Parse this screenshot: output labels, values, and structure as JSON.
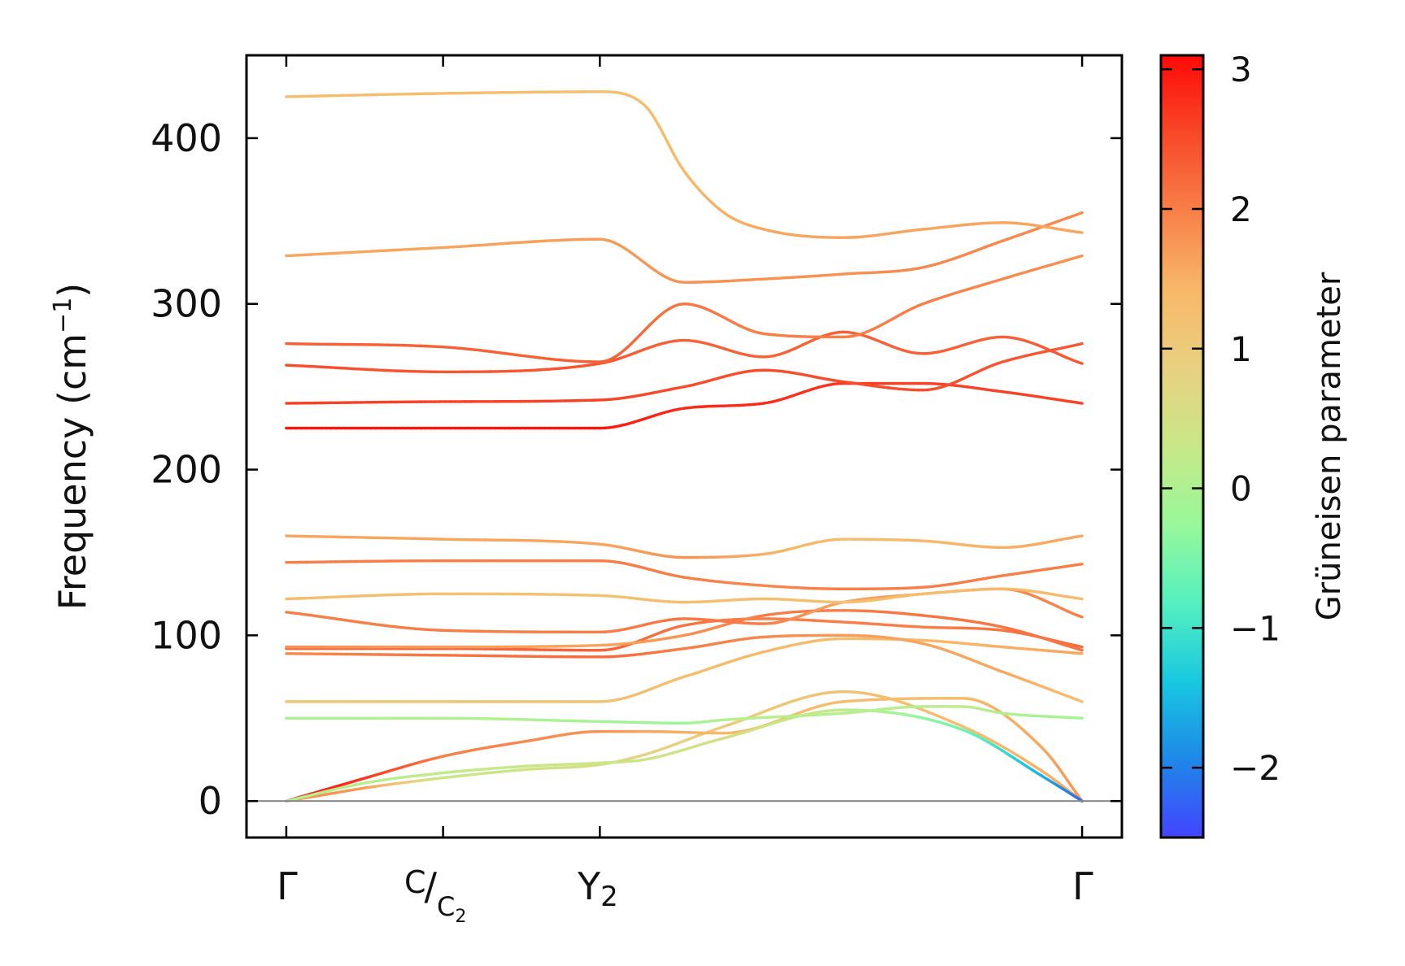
{
  "chart_data": {
    "type": "line",
    "title": "",
    "xlabel": "",
    "ylabel_text": "Frequency (cm",
    "ylabel_sup": "−1",
    "ylabel_close": ")",
    "ylim": [
      -22,
      450
    ],
    "yticks": [
      {
        "value": 0,
        "label": "0"
      },
      {
        "value": 100,
        "label": "100"
      },
      {
        "value": 200,
        "label": "200"
      },
      {
        "value": 300,
        "label": "300"
      },
      {
        "value": 400,
        "label": "400"
      }
    ],
    "xlim": [
      -0.05,
      1.05
    ],
    "x_points": [
      {
        "pos": 0.0,
        "label": "Γ"
      },
      {
        "pos": 0.197,
        "label_main": "C",
        "label_sub": "C",
        "label_subsub": "2"
      },
      {
        "pos": 0.394,
        "label_main": "Y",
        "label_sub": "2"
      },
      {
        "pos": 1.0,
        "label": "Γ"
      }
    ],
    "colorbar": {
      "label": "Grüneisen parameter",
      "range": [
        -2.5,
        3.1
      ],
      "ticks": [
        -2,
        -1,
        0,
        1,
        2,
        3
      ],
      "tick_labels": [
        "−2",
        "−1",
        "0",
        "1",
        "2",
        "3"
      ],
      "colors": [
        "#4444ff",
        "#1e88e8",
        "#18c8e0",
        "#55f0c0",
        "#98f89a",
        "#c8e888",
        "#e8d080",
        "#f8b868",
        "#f88048",
        "#f84828",
        "#ff0a08"
      ]
    },
    "series": [
      {
        "name": "band-1",
        "x": [
          0,
          0.05,
          0.1,
          0.197,
          0.3,
          0.394,
          0.45,
          0.55,
          0.7,
          0.85,
          0.95,
          1.0
        ],
        "y": [
          0,
          4,
          8,
          14,
          19,
          22,
          28,
          45,
          66,
          45,
          18,
          0
        ],
        "g": [
          1.8,
          1.8,
          1.7,
          0.3,
          0.4,
          0.6,
          0.8,
          1.0,
          1.2,
          1.3,
          1.5,
          1.6
        ]
      },
      {
        "name": "band-2",
        "x": [
          0,
          0.05,
          0.1,
          0.197,
          0.3,
          0.394,
          0.45,
          0.55,
          0.7,
          0.85,
          0.95,
          1.0
        ],
        "y": [
          0,
          7,
          14,
          27,
          36,
          42,
          42,
          41,
          60,
          62,
          32,
          0
        ],
        "g": [
          3.0,
          2.9,
          2.7,
          2.0,
          1.9,
          1.8,
          1.6,
          1.4,
          1.3,
          1.4,
          1.6,
          1.8
        ]
      },
      {
        "name": "band-3",
        "x": [
          0,
          0.1,
          0.197,
          0.3,
          0.394,
          0.45,
          0.55,
          0.7,
          0.85,
          0.95,
          1.0
        ],
        "y": [
          0,
          11,
          17,
          21,
          23,
          25,
          38,
          55,
          43,
          15,
          0
        ],
        "g": [
          0.0,
          0.1,
          0.2,
          0.3,
          0.3,
          0.4,
          0.5,
          0.2,
          -0.6,
          -1.6,
          -2.2
        ]
      },
      {
        "name": "band-4",
        "x": [
          0,
          0.197,
          0.394,
          0.5,
          0.55,
          0.7,
          0.8,
          0.85,
          0.9,
          1.0
        ],
        "y": [
          50,
          50,
          48,
          47,
          49,
          53,
          57,
          57,
          53,
          50
        ],
        "g": [
          0.0,
          0.1,
          -0.1,
          -0.2,
          0.1,
          0.1,
          0.1,
          0.2,
          0.0,
          -0.1
        ]
      },
      {
        "name": "band-5",
        "x": [
          0,
          0.197,
          0.394,
          0.5,
          0.6,
          0.7,
          0.8,
          0.9,
          1.0
        ],
        "y": [
          60,
          60,
          60,
          75,
          90,
          98,
          97,
          93,
          89
        ],
        "g": [
          1.1,
          1.1,
          1.2,
          1.3,
          1.4,
          1.3,
          1.4,
          1.5,
          1.6
        ]
      },
      {
        "name": "band-6",
        "x": [
          0,
          0.197,
          0.394,
          0.5,
          0.6,
          0.7,
          0.8,
          0.9,
          1.0
        ],
        "y": [
          89,
          88,
          87,
          92,
          99,
          100,
          95,
          78,
          60
        ],
        "g": [
          1.9,
          2.1,
          2.2,
          2.0,
          1.9,
          1.7,
          1.6,
          1.6,
          1.3
        ]
      },
      {
        "name": "band-7",
        "x": [
          0,
          0.197,
          0.394,
          0.5,
          0.6,
          0.7,
          0.8,
          0.9,
          1.0
        ],
        "y": [
          92,
          92,
          91,
          106,
          110,
          108,
          105,
          103,
          93
        ],
        "g": [
          2.2,
          2.3,
          2.3,
          2.1,
          2.0,
          2.0,
          2.0,
          2.1,
          2.2
        ]
      },
      {
        "name": "band-8",
        "x": [
          0,
          0.197,
          0.394,
          0.5,
          0.6,
          0.7,
          0.8,
          0.9,
          1.0
        ],
        "y": [
          93,
          93,
          94,
          100,
          112,
          115,
          112,
          105,
          91
        ],
        "g": [
          1.8,
          1.7,
          1.6,
          1.8,
          2.0,
          2.0,
          2.1,
          2.1,
          2.1
        ]
      },
      {
        "name": "band-9",
        "x": [
          0,
          0.197,
          0.394,
          0.5,
          0.6,
          0.7,
          0.8,
          0.9,
          1.0
        ],
        "y": [
          114,
          103,
          102,
          110,
          107,
          120,
          125,
          128,
          111
        ],
        "g": [
          2.0,
          2.0,
          2.0,
          2.1,
          2.0,
          1.6,
          1.7,
          1.9,
          2.0
        ]
      },
      {
        "name": "band-10",
        "x": [
          0,
          0.197,
          0.394,
          0.5,
          0.6,
          0.7,
          0.8,
          0.9,
          1.0
        ],
        "y": [
          122,
          125,
          124,
          120,
          122,
          120,
          125,
          128,
          122
        ],
        "g": [
          1.3,
          1.2,
          1.2,
          1.3,
          1.3,
          1.2,
          1.3,
          1.4,
          1.3
        ]
      },
      {
        "name": "band-11",
        "x": [
          0,
          0.197,
          0.394,
          0.5,
          0.6,
          0.7,
          0.8,
          0.9,
          1.0
        ],
        "y": [
          144,
          145,
          145,
          135,
          130,
          128,
          129,
          136,
          143
        ],
        "g": [
          2.0,
          2.0,
          2.0,
          2.0,
          1.9,
          2.0,
          2.0,
          2.0,
          2.0
        ]
      },
      {
        "name": "band-12",
        "x": [
          0,
          0.197,
          0.394,
          0.5,
          0.6,
          0.7,
          0.8,
          0.9,
          1.0
        ],
        "y": [
          160,
          158,
          155,
          147,
          149,
          158,
          157,
          153,
          160
        ],
        "g": [
          1.6,
          1.6,
          1.6,
          1.8,
          1.5,
          1.3,
          1.4,
          1.5,
          1.6
        ]
      },
      {
        "name": "band-13",
        "x": [
          0,
          0.197,
          0.394,
          0.5,
          0.6,
          0.7,
          0.8,
          0.9,
          1.0
        ],
        "y": [
          225,
          225,
          225,
          237,
          240,
          252,
          252,
          247,
          240
        ],
        "g": [
          3.0,
          3.0,
          3.0,
          2.8,
          2.8,
          2.7,
          2.6,
          2.6,
          2.6
        ]
      },
      {
        "name": "band-14",
        "x": [
          0,
          0.197,
          0.394,
          0.5,
          0.6,
          0.7,
          0.8,
          0.9,
          1.0
        ],
        "y": [
          240,
          241,
          242,
          250,
          260,
          253,
          248,
          265,
          276
        ],
        "g": [
          2.6,
          2.6,
          2.6,
          2.5,
          2.5,
          2.5,
          2.5,
          2.4,
          2.4
        ]
      },
      {
        "name": "band-15",
        "x": [
          0,
          0.197,
          0.394,
          0.5,
          0.6,
          0.7,
          0.8,
          0.9,
          1.0
        ],
        "y": [
          263,
          259,
          264,
          278,
          268,
          283,
          270,
          280,
          264
        ],
        "g": [
          2.5,
          2.4,
          2.4,
          2.3,
          2.3,
          2.3,
          2.3,
          2.3,
          2.4
        ]
      },
      {
        "name": "band-16",
        "x": [
          0,
          0.197,
          0.394,
          0.5,
          0.6,
          0.7,
          0.8,
          0.9,
          1.0
        ],
        "y": [
          276,
          274,
          265,
          300,
          282,
          280,
          300,
          315,
          329
        ],
        "g": [
          2.3,
          2.3,
          2.3,
          2.1,
          2.0,
          2.0,
          2.0,
          1.9,
          1.8
        ]
      },
      {
        "name": "band-17",
        "x": [
          0,
          0.197,
          0.394,
          0.5,
          0.6,
          0.7,
          0.8,
          0.9,
          1.0
        ],
        "y": [
          329,
          334,
          339,
          313,
          315,
          318,
          322,
          338,
          355
        ],
        "g": [
          1.6,
          1.6,
          1.7,
          1.8,
          1.8,
          1.8,
          1.9,
          1.9,
          1.9
        ]
      },
      {
        "name": "band-18",
        "x": [
          0,
          0.197,
          0.394,
          0.45,
          0.5,
          0.55,
          0.6,
          0.7,
          0.8,
          0.9,
          1.0
        ],
        "y": [
          425,
          427,
          428,
          420,
          380,
          355,
          345,
          340,
          345,
          349,
          343
        ],
        "g": [
          1.3,
          1.3,
          1.3,
          1.3,
          1.4,
          1.5,
          1.6,
          1.6,
          1.6,
          1.6,
          1.6
        ]
      }
    ]
  }
}
